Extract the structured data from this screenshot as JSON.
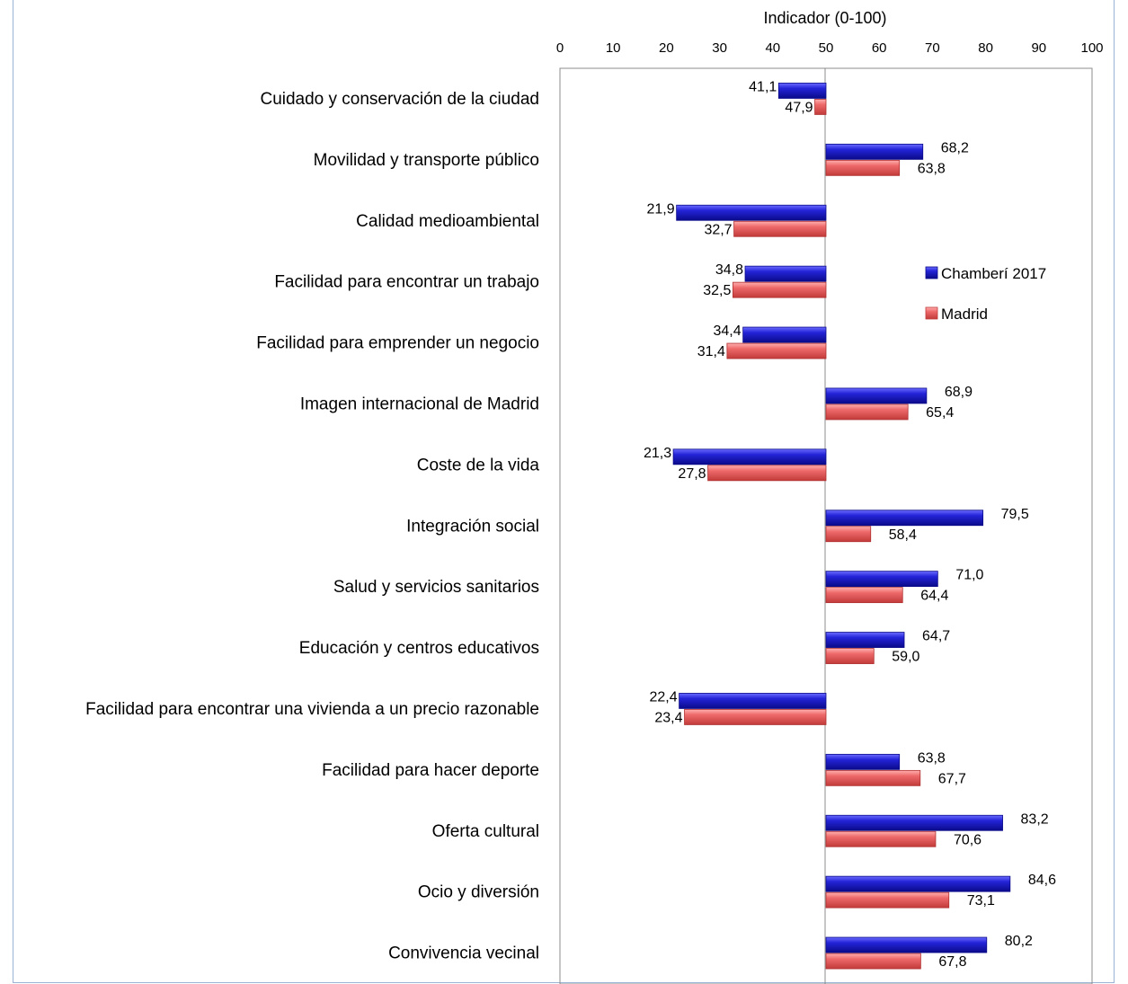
{
  "chart_data": {
    "type": "bar",
    "orientation": "horizontal",
    "xlabel": "Indicador (0-100)",
    "xlim": [
      0,
      100
    ],
    "xticks": [
      0,
      10,
      20,
      30,
      40,
      50,
      60,
      70,
      80,
      90,
      100
    ],
    "baseline": 50,
    "categories": [
      "Cuidado y conservación de la ciudad",
      "Movilidad y transporte público",
      "Calidad medioambiental",
      "Facilidad para encontrar un trabajo",
      "Facilidad para emprender un negocio",
      "Imagen internacional de Madrid",
      "Coste de la vida",
      "Integración social",
      "Salud y servicios sanitarios",
      "Educación y centros educativos",
      "Facilidad para encontrar una vivienda a un precio razonable",
      "Facilidad para hacer deporte",
      "Oferta cultural",
      "Ocio y diversión",
      "Convivencia vecinal"
    ],
    "series": [
      {
        "name": "Chamberí 2017",
        "color": "#1a1acc",
        "values": [
          41.1,
          68.2,
          21.9,
          34.8,
          34.4,
          68.9,
          21.3,
          79.5,
          71.0,
          64.7,
          22.4,
          63.8,
          83.2,
          84.6,
          80.2
        ],
        "labels": [
          "41,1",
          "68,2",
          "21,9",
          "34,8",
          "34,4",
          "68,9",
          "21,3",
          "79,5",
          "71,0",
          "64,7",
          "22,4",
          "63,8",
          "83,2",
          "84,6",
          "80,2"
        ]
      },
      {
        "name": "Madrid",
        "color": "#e05555",
        "values": [
          47.9,
          63.8,
          32.7,
          32.5,
          31.4,
          65.4,
          27.8,
          58.4,
          64.4,
          59.0,
          23.4,
          67.7,
          70.6,
          73.1,
          67.8
        ],
        "labels": [
          "47,9",
          "63,8",
          "32,7",
          "32,5",
          "31,4",
          "65,4",
          "27,8",
          "58,4",
          "64,4",
          "59,0",
          "23,4",
          "67,7",
          "70,6",
          "73,1",
          "67,8"
        ]
      }
    ],
    "legend_position": "right"
  }
}
